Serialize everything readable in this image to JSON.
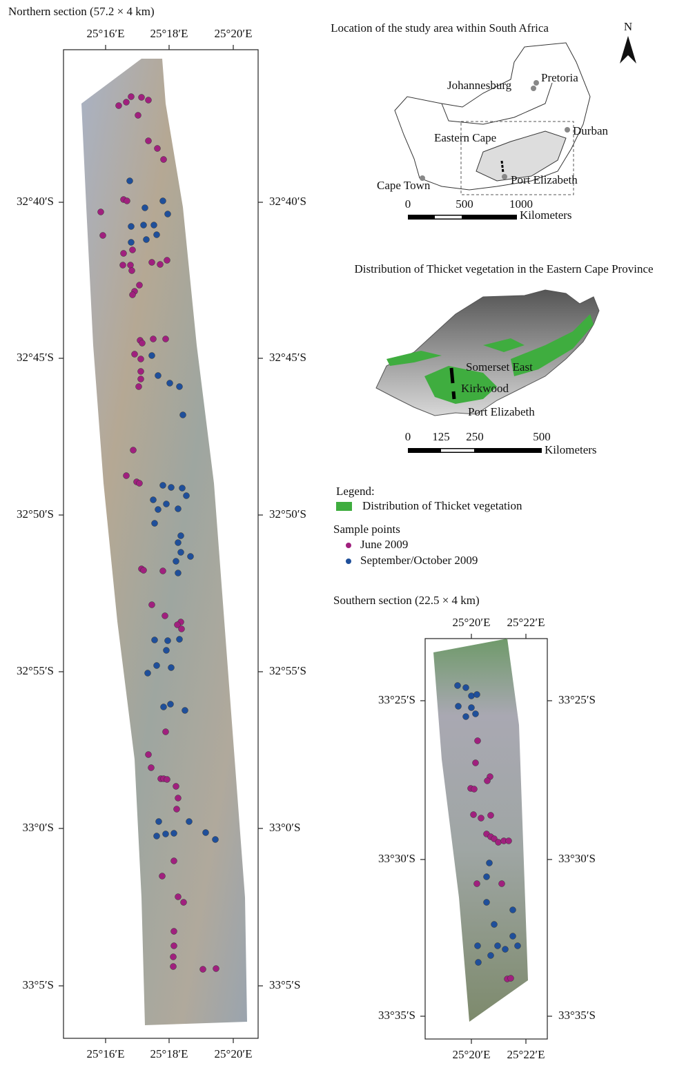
{
  "northern": {
    "title": "Northern section (57.2 × 4 km)",
    "lon_labels": [
      "25°16′E",
      "25°18′E",
      "25°20′E"
    ],
    "lat_labels": [
      "32°40′S",
      "32°45′S",
      "32°50′S",
      "32°55′S",
      "33°0′S",
      "33°5′S"
    ]
  },
  "inset_location": {
    "title": "Location of the study area within South Africa",
    "north": "N",
    "places": [
      "Pretoria",
      "Johannesburg",
      "Durban",
      "Eastern Cape",
      "Cape Town",
      "Port Elizabeth"
    ],
    "scale_labels": [
      "0",
      "500",
      "1000"
    ],
    "unit": "Kilometers"
  },
  "inset_thicket": {
    "title": "Distribution of Thicket vegetation in the Eastern Cape Province",
    "places": [
      "Somerset East",
      "Kirkwood",
      "Port Elizabeth"
    ],
    "scale_labels": [
      "0",
      "125",
      "250",
      "500"
    ],
    "unit": "Kilometers"
  },
  "legend": {
    "title": "Legend:",
    "thicket": "Distribution of Thicket vegetation",
    "samples_title": "Sample points",
    "june": "June 2009",
    "sept": "September/October 2009"
  },
  "southern": {
    "title": "Southern section (22.5 × 4 km)",
    "lon_labels": [
      "25°20′E",
      "25°22′E"
    ],
    "lat_labels": [
      "33°25′S",
      "33°30′S",
      "33°35′S"
    ]
  }
}
